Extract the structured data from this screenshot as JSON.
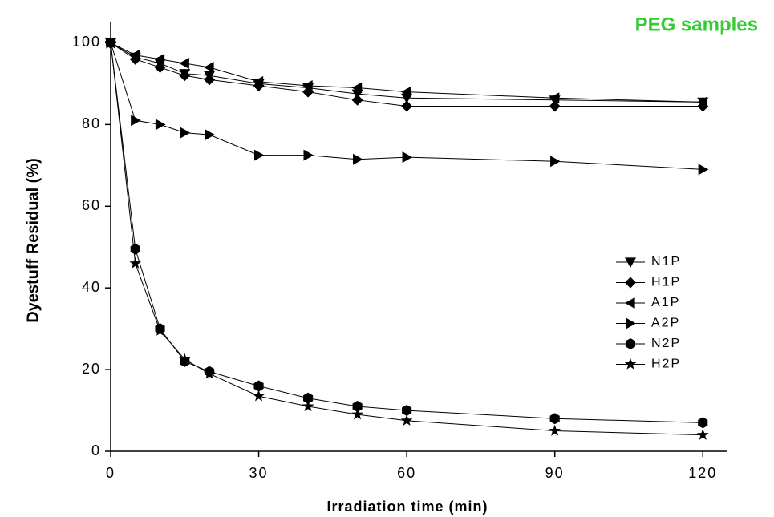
{
  "chart_data": {
    "type": "line",
    "title": "PEG samples",
    "x_label": "Irradiation time (min)",
    "y_label": "Dyestuff Residual (%)",
    "x": [
      0,
      5,
      10,
      15,
      20,
      30,
      40,
      50,
      60,
      90,
      120
    ],
    "series": [
      {
        "name": "N1P",
        "color": "#000000",
        "marker": "triangle-down",
        "values": [
          100,
          96.5,
          95,
          92.5,
          92,
          90,
          89,
          87.5,
          86.5,
          86,
          85.5
        ]
      },
      {
        "name": "H1P",
        "color": "#000000",
        "marker": "diamond",
        "values": [
          100,
          96,
          94,
          92,
          91,
          89.5,
          88,
          86,
          84.5,
          84.5,
          84.5
        ]
      },
      {
        "name": "A1P",
        "color": "#000000",
        "marker": "triangle-left",
        "values": [
          100,
          97,
          96,
          95,
          94,
          90.5,
          89.5,
          89,
          88,
          86.5,
          85.5
        ]
      },
      {
        "name": "A2P",
        "color": "#000000",
        "marker": "triangle-right",
        "values": [
          100,
          81,
          80,
          78,
          77.5,
          72.5,
          72.5,
          71.5,
          72,
          71,
          69
        ]
      },
      {
        "name": "N2P",
        "color": "#000000",
        "marker": "hexagon",
        "values": [
          100,
          49.5,
          30,
          22,
          19.5,
          16,
          13,
          11,
          10,
          8,
          7
        ]
      },
      {
        "name": "H2P",
        "color": "#000000",
        "marker": "star",
        "values": [
          100,
          46,
          29.5,
          22.5,
          19,
          13.5,
          11,
          9,
          7.5,
          5,
          4
        ]
      }
    ],
    "xlim": [
      0,
      125
    ],
    "ylim": [
      0,
      105
    ],
    "xticks": [
      0,
      30,
      60,
      90,
      120
    ],
    "yticks": [
      0,
      20,
      40,
      60,
      80,
      100
    ],
    "legend": "lower right"
  }
}
